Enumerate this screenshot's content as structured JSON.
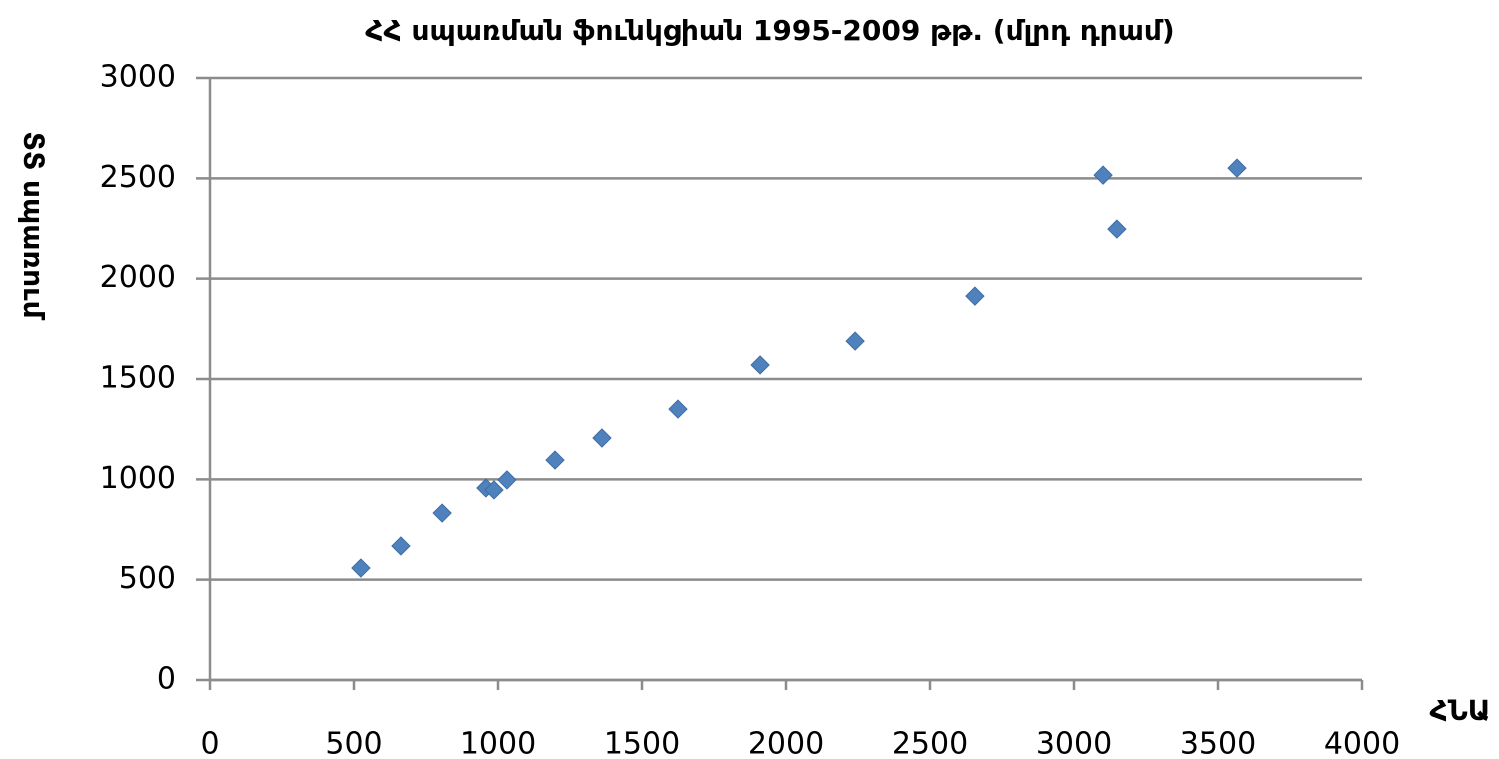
{
  "chart_data": {
    "type": "scatter",
    "title": "ՀՀ սպառման ֆունկցիան 1995-2009 թթ. (մլրդ դրամ)",
    "x_label": "ՀՆԱ",
    "y_label": "ՏՏ սպառում",
    "color": "#4f81bd",
    "grid": true,
    "xlim": [
      0,
      4000
    ],
    "xticks": [
      0,
      500,
      1000,
      1500,
      2000,
      2500,
      3000,
      3500,
      4000
    ],
    "ylim": [
      0,
      3000
    ],
    "yticks": [
      0,
      500,
      1000,
      1500,
      2000,
      2500,
      3000
    ],
    "x": [
      524,
      663,
      806,
      958,
      986,
      1031,
      1198,
      1361,
      1625,
      1910,
      2240,
      2656,
      3101,
      3149,
      3566
    ],
    "values": [
      558,
      668,
      832,
      957,
      947,
      997,
      1096,
      1206,
      1350,
      1570,
      1689,
      1913,
      2516,
      2247,
      2551
    ]
  }
}
